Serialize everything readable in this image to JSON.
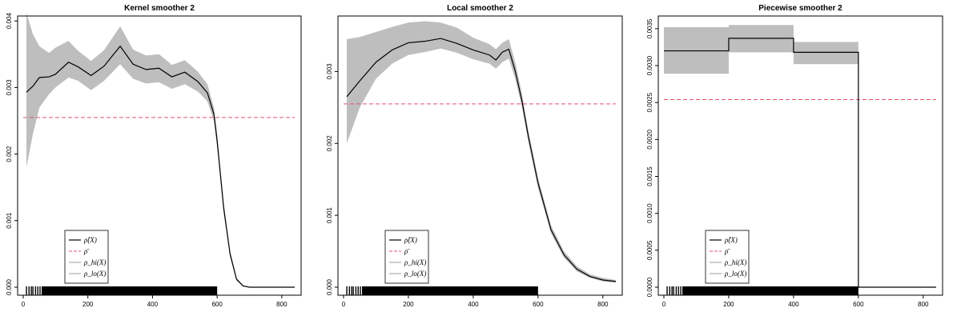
{
  "colors": {
    "band": "#bebebe",
    "mean": "#df536b",
    "fit": "#000000",
    "ci": "#9e9e9e"
  },
  "legend_labels": [
    "ρ̂(X)",
    "ρ̄",
    "ρ_hi(X)",
    "ρ_lo(X)"
  ],
  "chart_data": [
    {
      "type": "line",
      "title": "Kernel smoother 2",
      "xlim": [
        0,
        840
      ],
      "ylim": [
        0,
        0.00405
      ],
      "xticks": [
        "0",
        "200",
        "400",
        "600",
        "800"
      ],
      "xtick_values": [
        0,
        200,
        400,
        600,
        800
      ],
      "yticks": [
        "0.000",
        "0.001",
        "0.002",
        "0.003",
        "0.004"
      ],
      "ytick_values": [
        0,
        0.001,
        0.002,
        0.003,
        0.004
      ],
      "mean_line": 0.00255,
      "x": [
        10,
        30,
        50,
        80,
        100,
        140,
        170,
        210,
        250,
        300,
        340,
        380,
        420,
        460,
        500,
        540,
        570,
        590,
        600,
        610,
        620,
        640,
        660,
        680,
        700,
        750,
        840
      ],
      "fit": [
        0.00293,
        0.00302,
        0.00315,
        0.00316,
        0.0032,
        0.00338,
        0.00331,
        0.00318,
        0.00332,
        0.00362,
        0.00335,
        0.00327,
        0.00329,
        0.00316,
        0.00323,
        0.00309,
        0.00292,
        0.0026,
        0.0022,
        0.0017,
        0.0012,
        0.0005,
        0.00012,
        2e-05,
        0.0,
        0.0,
        0.0
      ],
      "lower": [
        0.0018,
        0.0023,
        0.0027,
        0.0029,
        0.003,
        0.00315,
        0.0031,
        0.00296,
        0.0031,
        0.00335,
        0.00313,
        0.00306,
        0.00308,
        0.00298,
        0.00305,
        0.00294,
        0.00279,
        0.0025,
        0.0021,
        0.00162,
        0.00112,
        0.00045,
        0.0001,
        1e-05,
        0.0,
        0.0,
        0.0
      ],
      "upper": [
        0.00412,
        0.0038,
        0.00362,
        0.00352,
        0.0036,
        0.0037,
        0.00355,
        0.0034,
        0.00356,
        0.00392,
        0.00357,
        0.00348,
        0.0035,
        0.00334,
        0.00341,
        0.00324,
        0.00305,
        0.0027,
        0.0023,
        0.00178,
        0.00128,
        0.00055,
        0.00014,
        3e-05,
        0.0,
        0.0,
        0.0
      ],
      "rug": [
        10,
        18,
        25,
        30,
        38,
        45,
        52,
        600
      ]
    },
    {
      "type": "line",
      "title": "Local smoother 2",
      "xlim": [
        0,
        840
      ],
      "ylim": [
        0,
        0.00375
      ],
      "xticks": [
        "0",
        "200",
        "400",
        "600",
        "800"
      ],
      "xtick_values": [
        0,
        200,
        400,
        600,
        800
      ],
      "yticks": [
        "0.000",
        "0.001",
        "0.002",
        "0.003"
      ],
      "ytick_values": [
        0,
        0.001,
        0.002,
        0.003
      ],
      "mean_line": 0.00255,
      "x": [
        10,
        50,
        100,
        150,
        200,
        250,
        300,
        350,
        400,
        450,
        470,
        490,
        510,
        530,
        550,
        570,
        600,
        640,
        680,
        720,
        760,
        800,
        840
      ],
      "fit": [
        0.00265,
        0.00287,
        0.00313,
        0.0033,
        0.0034,
        0.00342,
        0.00346,
        0.00339,
        0.0033,
        0.00323,
        0.00316,
        0.00327,
        0.00331,
        0.003,
        0.0026,
        0.0021,
        0.00145,
        0.0008,
        0.00045,
        0.00025,
        0.00015,
        0.0001,
        8e-05
      ],
      "lower": [
        0.002,
        0.0025,
        0.0029,
        0.00311,
        0.00323,
        0.00327,
        0.00332,
        0.00326,
        0.00317,
        0.00311,
        0.00304,
        0.00313,
        0.00318,
        0.00289,
        0.00251,
        0.00202,
        0.00138,
        0.00075,
        0.00041,
        0.00022,
        0.00013,
        8e-05,
        6e-05
      ],
      "upper": [
        0.00345,
        0.00348,
        0.00355,
        0.00362,
        0.00368,
        0.0037,
        0.00368,
        0.00361,
        0.00347,
        0.00338,
        0.00331,
        0.0034,
        0.00345,
        0.00312,
        0.0027,
        0.00218,
        0.00152,
        0.00086,
        0.0005,
        0.00029,
        0.00018,
        0.00013,
        0.0001
      ],
      "rug": [
        10,
        18,
        25,
        30,
        38,
        45,
        52,
        600
      ]
    },
    {
      "type": "line",
      "title": "Piecewise smoother 2",
      "xlim": [
        0,
        840
      ],
      "ylim": [
        0,
        0.00365
      ],
      "xticks": [
        "0",
        "200",
        "400",
        "600",
        "800"
      ],
      "xtick_values": [
        0,
        200,
        400,
        600,
        800
      ],
      "yticks": [
        "0.0000",
        "0.0005",
        "0.0010",
        "0.0015",
        "0.0020",
        "0.0025",
        "0.0030",
        "0.0035"
      ],
      "ytick_values": [
        0,
        0.0005,
        0.001,
        0.0015,
        0.002,
        0.0025,
        0.003,
        0.0035
      ],
      "mean_line": 0.00254,
      "steps": [
        {
          "from": 0,
          "to": 200,
          "fit": 0.0032,
          "lower": 0.00289,
          "upper": 0.00352
        },
        {
          "from": 200,
          "to": 400,
          "fit": 0.00337,
          "lower": 0.00318,
          "upper": 0.00355
        },
        {
          "from": 400,
          "to": 600,
          "fit": 0.00318,
          "lower": 0.00302,
          "upper": 0.00332
        },
        {
          "from": 600,
          "to": 840,
          "fit": 0.0,
          "lower": 0.0,
          "upper": 0.0
        }
      ],
      "rug": [
        10,
        18,
        25,
        30,
        38,
        45,
        52,
        600
      ]
    }
  ]
}
